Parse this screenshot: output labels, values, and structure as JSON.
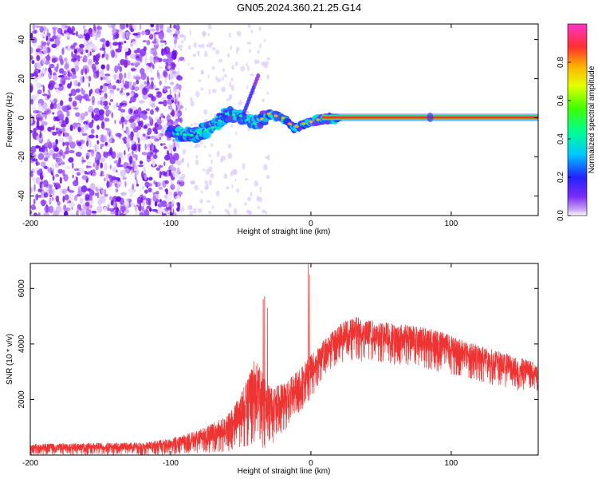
{
  "title": "GN05.2024.360.21.25.G14",
  "chart_data": [
    {
      "type": "heatmap",
      "xlabel": "Height of straight line (km)",
      "ylabel": "Frequency (Hz)",
      "xlim": [
        -200,
        162
      ],
      "ylim": [
        -50,
        48
      ],
      "xticks": [
        -200,
        -100,
        0,
        100
      ],
      "xtick_labels": [
        "-200",
        "-100",
        "0",
        "100"
      ],
      "yticks": [
        -40,
        -20,
        0,
        20,
        40
      ],
      "ytick_labels": [
        "-40",
        "-20",
        "0",
        "20",
        "40"
      ],
      "colorbar": {
        "label": "Normalized spectral amplitude",
        "range": [
          0,
          1
        ],
        "ticks": [
          0.0,
          0.2,
          0.4,
          0.6,
          0.8
        ],
        "tick_labels": [
          "0.0",
          "0.2",
          "0.4",
          "0.6",
          "0.8"
        ]
      },
      "features": {
        "noise_region_x": [
          -200,
          -100
        ],
        "signal_track": [
          {
            "x": -100,
            "freq": -8
          },
          {
            "x": -85,
            "freq": -9
          },
          {
            "x": -70,
            "freq": -5
          },
          {
            "x": -60,
            "freq": 2
          },
          {
            "x": -50,
            "freq": 1
          },
          {
            "x": -40,
            "freq": -3
          },
          {
            "x": -30,
            "freq": 2
          },
          {
            "x": -20,
            "freq": 0
          },
          {
            "x": -12,
            "freq": -5
          },
          {
            "x": -5,
            "freq": -3
          },
          {
            "x": 5,
            "freq": -1
          },
          {
            "x": 20,
            "freq": 0
          },
          {
            "x": 162,
            "freq": 0
          }
        ]
      }
    },
    {
      "type": "line",
      "xlabel": "Height of straight line (km)",
      "ylabel": "SNR (10 * v/v)",
      "xlim": [
        -200,
        162
      ],
      "ylim": [
        0,
        6900
      ],
      "xticks": [
        -200,
        -100,
        0,
        100
      ],
      "xtick_labels": [
        "-200",
        "-100",
        "0",
        "100"
      ],
      "yticks": [
        2000,
        4000,
        6000
      ],
      "ytick_labels": [
        "2000",
        "4000",
        "6000"
      ],
      "color": "#ee3333",
      "series": [
        {
          "envelope": [
            {
              "x": -200,
              "lo": 0,
              "hi": 400
            },
            {
              "x": -150,
              "lo": 0,
              "hi": 450
            },
            {
              "x": -120,
              "lo": 0,
              "hi": 450
            },
            {
              "x": -100,
              "lo": 20,
              "hi": 600
            },
            {
              "x": -80,
              "lo": 50,
              "hi": 900
            },
            {
              "x": -60,
              "lo": 100,
              "hi": 1400
            },
            {
              "x": -50,
              "lo": 200,
              "hi": 2200
            },
            {
              "x": -40,
              "lo": 300,
              "hi": 3500
            },
            {
              "x": -30,
              "lo": 200,
              "hi": 2500
            },
            {
              "x": -20,
              "lo": 800,
              "hi": 2600
            },
            {
              "x": -10,
              "lo": 1400,
              "hi": 3000
            },
            {
              "x": 0,
              "lo": 2000,
              "hi": 3600
            },
            {
              "x": 10,
              "lo": 2900,
              "hi": 4200
            },
            {
              "x": 20,
              "lo": 3300,
              "hi": 4700
            },
            {
              "x": 30,
              "lo": 3400,
              "hi": 5000
            },
            {
              "x": 50,
              "lo": 3300,
              "hi": 4800
            },
            {
              "x": 70,
              "lo": 3200,
              "hi": 4700
            },
            {
              "x": 90,
              "lo": 3000,
              "hi": 4500
            },
            {
              "x": 110,
              "lo": 2800,
              "hi": 4100
            },
            {
              "x": 130,
              "lo": 2500,
              "hi": 3800
            },
            {
              "x": 150,
              "lo": 2300,
              "hi": 3500
            },
            {
              "x": 162,
              "lo": 2300,
              "hi": 3300
            }
          ],
          "spikes": [
            {
              "x": -34,
              "value": 5600
            },
            {
              "x": -33,
              "value": 5700
            },
            {
              "x": -31,
              "value": 5300
            },
            {
              "x": -2,
              "value": 6900
            },
            {
              "x": -1,
              "value": 6500
            }
          ]
        }
      ]
    }
  ]
}
